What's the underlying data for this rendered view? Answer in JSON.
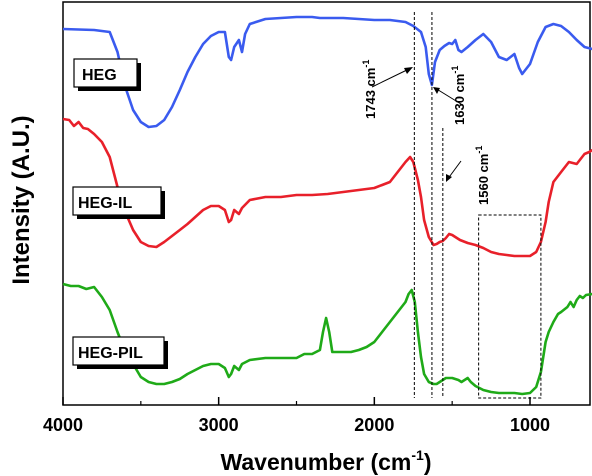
{
  "chart_data": {
    "type": "line",
    "title": "",
    "xlabel": "Wavenumber (cm",
    "xlabel_sup": "-1",
    "xlabel_end": ")",
    "ylabel": "Intensity (A.U.)",
    "xlim": [
      4000,
      600
    ],
    "x_reversed": true,
    "x_ticks": [
      4000,
      3000,
      2000,
      1000
    ],
    "grid": false,
    "series": [
      {
        "name": "HEG",
        "color": "#3a5bef",
        "points": [
          [
            4000,
            27
          ],
          [
            3800,
            28
          ],
          [
            3700,
            30
          ],
          [
            3650,
            50
          ],
          [
            3600,
            85
          ],
          [
            3550,
            108
          ],
          [
            3500,
            120
          ],
          [
            3450,
            125
          ],
          [
            3400,
            124
          ],
          [
            3350,
            118
          ],
          [
            3300,
            105
          ],
          [
            3250,
            88
          ],
          [
            3200,
            70
          ],
          [
            3150,
            55
          ],
          [
            3100,
            42
          ],
          [
            3050,
            34
          ],
          [
            3000,
            30
          ],
          [
            2960,
            30
          ],
          [
            2935,
            55
          ],
          [
            2920,
            58
          ],
          [
            2900,
            45
          ],
          [
            2870,
            38
          ],
          [
            2850,
            50
          ],
          [
            2830,
            32
          ],
          [
            2800,
            22
          ],
          [
            2700,
            17
          ],
          [
            2600,
            16
          ],
          [
            2500,
            15
          ],
          [
            2400,
            15
          ],
          [
            2350,
            16
          ],
          [
            2300,
            16
          ],
          [
            2200,
            16
          ],
          [
            2100,
            17
          ],
          [
            2000,
            18
          ],
          [
            1900,
            18
          ],
          [
            1800,
            20
          ],
          [
            1750,
            24
          ],
          [
            1700,
            30
          ],
          [
            1670,
            45
          ],
          [
            1650,
            72
          ],
          [
            1630,
            83
          ],
          [
            1610,
            60
          ],
          [
            1580,
            48
          ],
          [
            1550,
            44
          ],
          [
            1520,
            41
          ],
          [
            1500,
            42
          ],
          [
            1480,
            38
          ],
          [
            1460,
            48
          ],
          [
            1440,
            50
          ],
          [
            1400,
            45
          ],
          [
            1350,
            38
          ],
          [
            1300,
            32
          ],
          [
            1250,
            40
          ],
          [
            1200,
            55
          ],
          [
            1150,
            58
          ],
          [
            1100,
            52
          ],
          [
            1070,
            66
          ],
          [
            1050,
            72
          ],
          [
            1030,
            68
          ],
          [
            1000,
            62
          ],
          [
            950,
            40
          ],
          [
            900,
            25
          ],
          [
            850,
            22
          ],
          [
            800,
            24
          ],
          [
            750,
            30
          ],
          [
            700,
            38
          ],
          [
            650,
            45
          ],
          [
            600,
            47
          ]
        ]
      },
      {
        "name": "HEG-IL",
        "color": "#e8202a",
        "points": [
          [
            4000,
            117
          ],
          [
            3960,
            118
          ],
          [
            3930,
            124
          ],
          [
            3900,
            120
          ],
          [
            3870,
            126
          ],
          [
            3840,
            127
          ],
          [
            3800,
            132
          ],
          [
            3750,
            140
          ],
          [
            3700,
            155
          ],
          [
            3650,
            185
          ],
          [
            3600,
            210
          ],
          [
            3550,
            228
          ],
          [
            3500,
            240
          ],
          [
            3450,
            244
          ],
          [
            3400,
            245
          ],
          [
            3350,
            240
          ],
          [
            3300,
            234
          ],
          [
            3250,
            228
          ],
          [
            3200,
            222
          ],
          [
            3150,
            215
          ],
          [
            3100,
            208
          ],
          [
            3050,
            204
          ],
          [
            3000,
            204
          ],
          [
            2960,
            208
          ],
          [
            2935,
            220
          ],
          [
            2920,
            218
          ],
          [
            2900,
            208
          ],
          [
            2870,
            212
          ],
          [
            2850,
            206
          ],
          [
            2800,
            198
          ],
          [
            2700,
            195
          ],
          [
            2600,
            195
          ],
          [
            2500,
            193
          ],
          [
            2400,
            193
          ],
          [
            2300,
            192
          ],
          [
            2200,
            190
          ],
          [
            2100,
            188
          ],
          [
            2000,
            186
          ],
          [
            1900,
            180
          ],
          [
            1850,
            170
          ],
          [
            1800,
            160
          ],
          [
            1770,
            155
          ],
          [
            1750,
            160
          ],
          [
            1720,
            178
          ],
          [
            1700,
            195
          ],
          [
            1680,
            218
          ],
          [
            1650,
            235
          ],
          [
            1620,
            243
          ],
          [
            1600,
            242
          ],
          [
            1580,
            240
          ],
          [
            1560,
            239
          ],
          [
            1540,
            236
          ],
          [
            1520,
            232
          ],
          [
            1500,
            233
          ],
          [
            1480,
            235
          ],
          [
            1450,
            238
          ],
          [
            1400,
            241
          ],
          [
            1350,
            243
          ],
          [
            1300,
            246
          ],
          [
            1250,
            250
          ],
          [
            1200,
            252
          ],
          [
            1150,
            253
          ],
          [
            1100,
            254
          ],
          [
            1050,
            254
          ],
          [
            1000,
            254
          ],
          [
            960,
            250
          ],
          [
            930,
            240
          ],
          [
            900,
            220
          ],
          [
            880,
            200
          ],
          [
            850,
            180
          ],
          [
            800,
            170
          ],
          [
            750,
            160
          ],
          [
            700,
            162
          ],
          [
            680,
            158
          ],
          [
            650,
            152
          ],
          [
            620,
            150
          ],
          [
            600,
            148
          ]
        ]
      },
      {
        "name": "HEG-PIL",
        "color": "#1faa18",
        "points": [
          [
            4000,
            282
          ],
          [
            3950,
            284
          ],
          [
            3900,
            284
          ],
          [
            3850,
            287
          ],
          [
            3800,
            285
          ],
          [
            3750,
            295
          ],
          [
            3700,
            308
          ],
          [
            3650,
            330
          ],
          [
            3600,
            350
          ],
          [
            3550,
            362
          ],
          [
            3500,
            375
          ],
          [
            3450,
            380
          ],
          [
            3400,
            382
          ],
          [
            3350,
            382
          ],
          [
            3300,
            380
          ],
          [
            3250,
            377
          ],
          [
            3200,
            372
          ],
          [
            3150,
            368
          ],
          [
            3100,
            364
          ],
          [
            3050,
            362
          ],
          [
            3000,
            362
          ],
          [
            2960,
            366
          ],
          [
            2935,
            375
          ],
          [
            2920,
            372
          ],
          [
            2900,
            364
          ],
          [
            2870,
            368
          ],
          [
            2850,
            362
          ],
          [
            2800,
            358
          ],
          [
            2700,
            356
          ],
          [
            2600,
            356
          ],
          [
            2500,
            356
          ],
          [
            2450,
            352
          ],
          [
            2400,
            352
          ],
          [
            2350,
            348
          ],
          [
            2330,
            330
          ],
          [
            2310,
            316
          ],
          [
            2290,
            330
          ],
          [
            2270,
            350
          ],
          [
            2200,
            350
          ],
          [
            2150,
            350
          ],
          [
            2100,
            348
          ],
          [
            2050,
            345
          ],
          [
            2000,
            340
          ],
          [
            1950,
            330
          ],
          [
            1900,
            320
          ],
          [
            1850,
            310
          ],
          [
            1800,
            300
          ],
          [
            1780,
            292
          ],
          [
            1760,
            288
          ],
          [
            1740,
            300
          ],
          [
            1720,
            330
          ],
          [
            1700,
            355
          ],
          [
            1680,
            372
          ],
          [
            1650,
            380
          ],
          [
            1620,
            382
          ],
          [
            1600,
            382
          ],
          [
            1580,
            380
          ],
          [
            1560,
            378
          ],
          [
            1540,
            376
          ],
          [
            1500,
            376
          ],
          [
            1460,
            378
          ],
          [
            1440,
            380
          ],
          [
            1400,
            376
          ],
          [
            1380,
            380
          ],
          [
            1350,
            384
          ],
          [
            1300,
            388
          ],
          [
            1250,
            390
          ],
          [
            1200,
            391
          ],
          [
            1150,
            391
          ],
          [
            1100,
            391
          ],
          [
            1050,
            392
          ],
          [
            1000,
            391
          ],
          [
            960,
            385
          ],
          [
            930,
            370
          ],
          [
            900,
            340
          ],
          [
            880,
            330
          ],
          [
            850,
            320
          ],
          [
            820,
            312
          ],
          [
            800,
            310
          ],
          [
            760,
            305
          ],
          [
            740,
            300
          ],
          [
            720,
            305
          ],
          [
            700,
            298
          ],
          [
            680,
            294
          ],
          [
            660,
            296
          ],
          [
            640,
            293
          ],
          [
            600,
            292
          ]
        ]
      }
    ],
    "annotations": [
      {
        "text": "1743 cm",
        "sup": "-1",
        "x": 1743
      },
      {
        "text": "1630 cm",
        "sup": "-1",
        "x": 1630
      },
      {
        "text": "1560 cm",
        "sup": "-1",
        "x": 1560
      }
    ],
    "labels": [
      "HEG",
      "HEG-IL",
      "HEG-PIL"
    ],
    "highlight_box": {
      "x_from": 1330,
      "x_to": 930
    }
  }
}
